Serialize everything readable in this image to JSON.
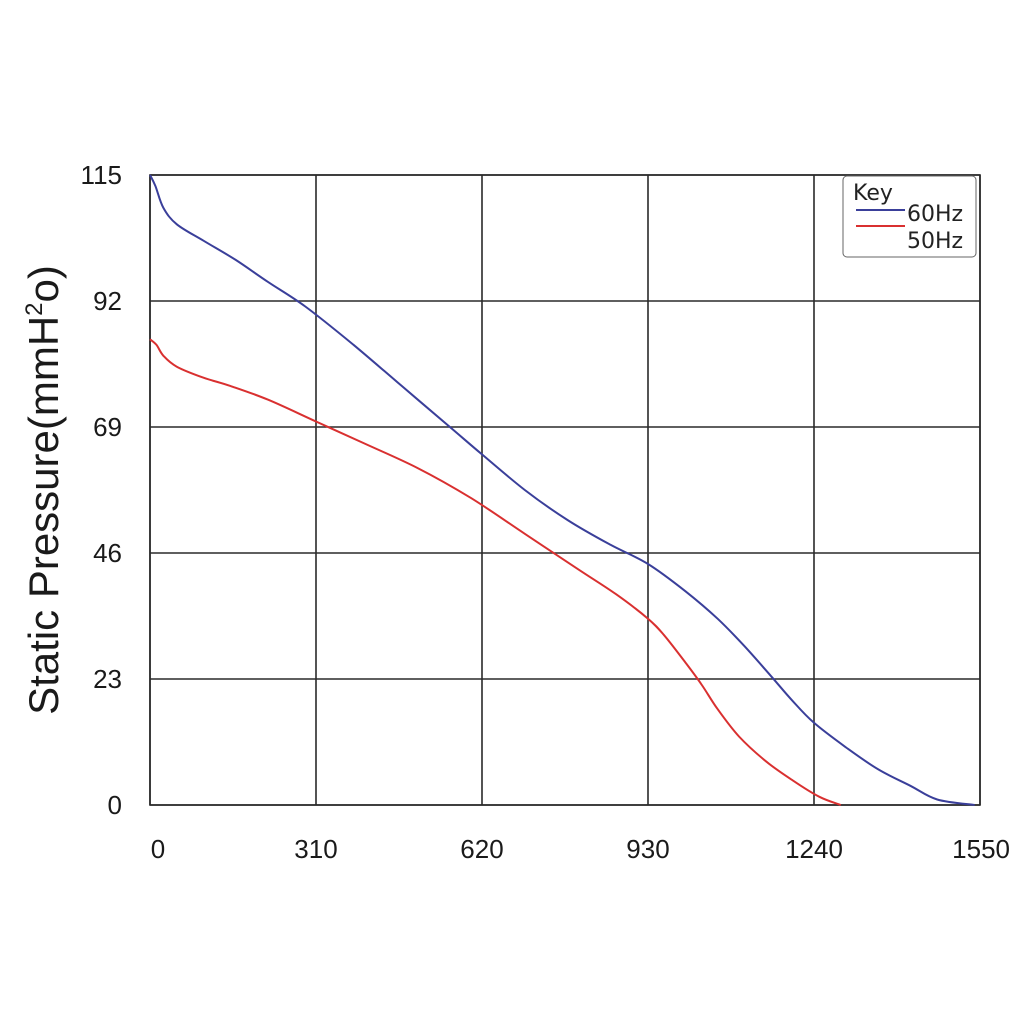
{
  "chart_data": {
    "type": "line",
    "title": "",
    "xlabel": "",
    "ylabel": "Static Pressure(mmH",
    "ylabel_sup": "2",
    "ylabel_tail": "o)",
    "xlim": [
      0,
      1550
    ],
    "ylim": [
      0,
      115
    ],
    "x_ticks": [
      "0",
      "310",
      "620",
      "930",
      "1240",
      "1550"
    ],
    "y_ticks": [
      "0",
      "23",
      "46",
      "69",
      "92",
      "115"
    ],
    "x_tick_values": [
      0,
      310,
      620,
      930,
      1240,
      1550
    ],
    "y_tick_values": [
      0,
      23,
      46,
      69,
      92,
      115
    ],
    "grid": true,
    "legend": {
      "title": "Key",
      "position": "top-right"
    },
    "series": [
      {
        "name": "60Hz",
        "color": "#3a3f9a",
        "points": [
          [
            0,
            115
          ],
          [
            10,
            113
          ],
          [
            25,
            109
          ],
          [
            50,
            106
          ],
          [
            100,
            103
          ],
          [
            160,
            99.5
          ],
          [
            220,
            95.5
          ],
          [
            290,
            91
          ],
          [
            380,
            84
          ],
          [
            470,
            76.5
          ],
          [
            560,
            69
          ],
          [
            620,
            64
          ],
          [
            700,
            57.5
          ],
          [
            780,
            52
          ],
          [
            860,
            47.5
          ],
          [
            930,
            44
          ],
          [
            1000,
            39
          ],
          [
            1060,
            34
          ],
          [
            1110,
            29
          ],
          [
            1160,
            23.5
          ],
          [
            1200,
            19
          ],
          [
            1240,
            15
          ],
          [
            1300,
            10.5
          ],
          [
            1360,
            6.5
          ],
          [
            1420,
            3.5
          ],
          [
            1470,
            1
          ],
          [
            1540,
            0
          ]
        ]
      },
      {
        "name": "50Hz",
        "color": "#d93030",
        "points": [
          [
            0,
            85
          ],
          [
            12,
            84
          ],
          [
            25,
            82
          ],
          [
            50,
            80
          ],
          [
            100,
            78
          ],
          [
            150,
            76.5
          ],
          [
            220,
            74
          ],
          [
            310,
            70
          ],
          [
            400,
            66
          ],
          [
            500,
            61.5
          ],
          [
            600,
            56
          ],
          [
            700,
            49.5
          ],
          [
            800,
            43
          ],
          [
            870,
            38.5
          ],
          [
            930,
            34
          ],
          [
            960,
            31
          ],
          [
            1000,
            26
          ],
          [
            1030,
            22
          ],
          [
            1060,
            17.5
          ],
          [
            1100,
            12.5
          ],
          [
            1150,
            8
          ],
          [
            1200,
            4.5
          ],
          [
            1250,
            1.5
          ],
          [
            1290,
            0
          ]
        ]
      }
    ]
  }
}
